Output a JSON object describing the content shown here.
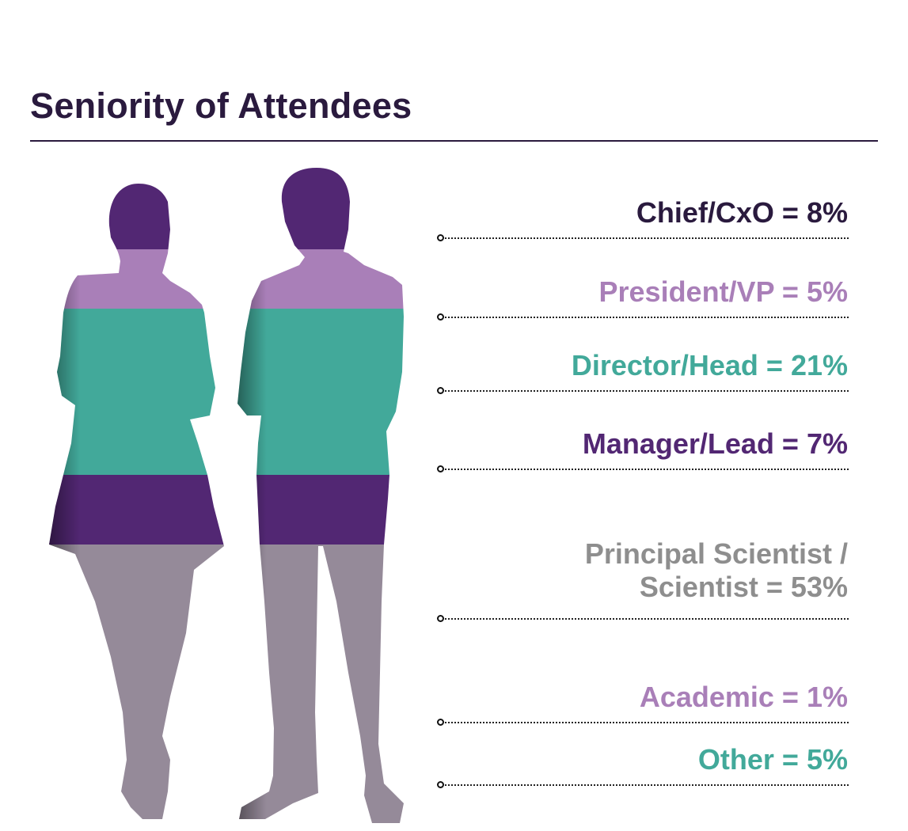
{
  "chart_data": {
    "type": "stacked-bar",
    "title": "Seniority of Attendees",
    "categories": [
      "Chief/CxO",
      "President/VP",
      "Director/Head",
      "Manager/Lead",
      "Principal Scientist / Scientist",
      "Academic",
      "Other"
    ],
    "values": [
      8,
      5,
      21,
      7,
      53,
      1,
      5
    ],
    "unit": "%",
    "labels": [
      {
        "lines": [
          "Chief/CxO = 8%"
        ],
        "color": "#2a1a3e"
      },
      {
        "lines": [
          "President/VP = 5%"
        ],
        "color": "#a97fb8"
      },
      {
        "lines": [
          "Director/Head = 21%"
        ],
        "color": "#42a99a"
      },
      {
        "lines": [
          "Manager/Lead = 7%"
        ],
        "color": "#522773"
      },
      {
        "lines": [
          "Principal Scientist /",
          "Scientist = 53%"
        ],
        "color": "#8e8e8e"
      },
      {
        "lines": [
          "Academic = 1%"
        ],
        "color": "#a97fb8"
      },
      {
        "lines": [
          "Other = 5%"
        ],
        "color": "#42a99a"
      }
    ],
    "band_colors": {
      "head": "#522773",
      "shoulders": "#a97fb8",
      "torso": "#42a99a",
      "waist": "#522773",
      "legs": "#958a99"
    }
  }
}
